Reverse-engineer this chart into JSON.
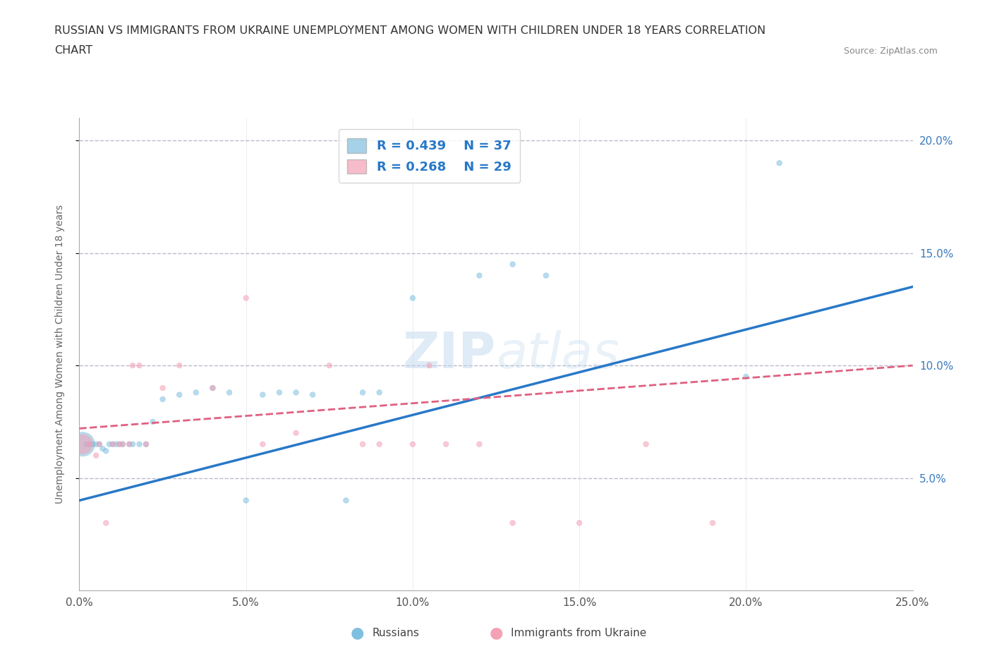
{
  "title_line1": "RUSSIAN VS IMMIGRANTS FROM UKRAINE UNEMPLOYMENT AMONG WOMEN WITH CHILDREN UNDER 18 YEARS CORRELATION",
  "title_line2": "CHART",
  "source": "Source: ZipAtlas.com",
  "ylabel": "Unemployment Among Women with Children Under 18 years",
  "xlim": [
    0.0,
    0.25
  ],
  "ylim": [
    0.0,
    0.21
  ],
  "x_ticks": [
    0.0,
    0.05,
    0.1,
    0.15,
    0.2,
    0.25
  ],
  "x_tick_labels": [
    "0.0%",
    "5.0%",
    "10.0%",
    "15.0%",
    "20.0%",
    "25.0%"
  ],
  "y_ticks": [
    0.05,
    0.1,
    0.15,
    0.2
  ],
  "y_tick_labels": [
    "5.0%",
    "10.0%",
    "15.0%",
    "20.0%"
  ],
  "russian_R": 0.439,
  "russian_N": 37,
  "ukraine_R": 0.268,
  "ukraine_N": 29,
  "russian_color": "#7fbfdf",
  "ukraine_color": "#f4a0b5",
  "russian_line_color": "#2878c8",
  "ukraine_line_color": "#e06080",
  "background_color": "#ffffff",
  "grid_color": "#bbbbcc",
  "watermark_text": "ZIPatlas",
  "legend_label_russian": "Russians",
  "legend_label_ukraine": "Immigrants from Ukraine",
  "russians_x": [
    0.001,
    0.002,
    0.003,
    0.004,
    0.005,
    0.006,
    0.007,
    0.008,
    0.009,
    0.01,
    0.011,
    0.012,
    0.013,
    0.015,
    0.016,
    0.018,
    0.02,
    0.022,
    0.025,
    0.03,
    0.035,
    0.04,
    0.045,
    0.05,
    0.055,
    0.06,
    0.065,
    0.07,
    0.08,
    0.085,
    0.09,
    0.1,
    0.12,
    0.13,
    0.14,
    0.2,
    0.21
  ],
  "russians_y": [
    0.065,
    0.065,
    0.065,
    0.065,
    0.065,
    0.065,
    0.063,
    0.062,
    0.065,
    0.065,
    0.065,
    0.065,
    0.065,
    0.065,
    0.065,
    0.065,
    0.065,
    0.075,
    0.085,
    0.087,
    0.088,
    0.09,
    0.088,
    0.04,
    0.087,
    0.088,
    0.088,
    0.087,
    0.04,
    0.088,
    0.088,
    0.13,
    0.14,
    0.145,
    0.14,
    0.095,
    0.19
  ],
  "russians_size": [
    600,
    30,
    30,
    30,
    30,
    30,
    30,
    30,
    30,
    30,
    30,
    30,
    30,
    30,
    30,
    30,
    30,
    30,
    30,
    30,
    30,
    30,
    30,
    30,
    30,
    30,
    30,
    30,
    30,
    30,
    30,
    30,
    30,
    30,
    30,
    30,
    30
  ],
  "ukraine_x": [
    0.001,
    0.003,
    0.005,
    0.006,
    0.008,
    0.01,
    0.012,
    0.013,
    0.015,
    0.016,
    0.018,
    0.02,
    0.025,
    0.03,
    0.04,
    0.05,
    0.055,
    0.065,
    0.075,
    0.085,
    0.09,
    0.1,
    0.105,
    0.11,
    0.12,
    0.13,
    0.15,
    0.17,
    0.19
  ],
  "ukraine_y": [
    0.065,
    0.065,
    0.06,
    0.065,
    0.03,
    0.065,
    0.065,
    0.065,
    0.065,
    0.1,
    0.1,
    0.065,
    0.09,
    0.1,
    0.09,
    0.13,
    0.065,
    0.07,
    0.1,
    0.065,
    0.065,
    0.065,
    0.1,
    0.065,
    0.065,
    0.03,
    0.03,
    0.065,
    0.03
  ],
  "ukraine_size": [
    400,
    30,
    30,
    30,
    30,
    30,
    30,
    30,
    30,
    30,
    30,
    30,
    30,
    30,
    30,
    30,
    30,
    30,
    30,
    30,
    30,
    30,
    30,
    30,
    30,
    30,
    30,
    30,
    30
  ]
}
